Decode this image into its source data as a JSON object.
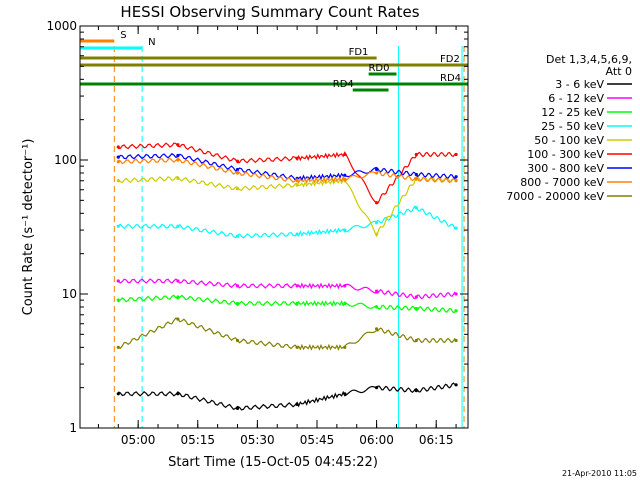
{
  "chart_data": {
    "type": "line",
    "title": "HESSI Observing Summary Count Rates",
    "xlabel": "Start Time (15-Oct-05 04:45:22)",
    "ylabel": "Count Rate (s⁻¹ detector⁻¹)",
    "x_units": "UT time",
    "xlim": [
      "04:45:22",
      "06:23:00"
    ],
    "x_ticks": [
      "05:00",
      "05:15",
      "05:30",
      "05:45",
      "06:00",
      "06:15"
    ],
    "y_scale": "log",
    "ylim": [
      1,
      1000
    ],
    "y_ticks": [
      "1",
      "10",
      "100",
      "1000"
    ],
    "legend_header": [
      "Det 1,3,4,5,6,9,",
      "Att 0"
    ],
    "legend_position": "right",
    "timestamp": "21-Apr-2010 11:05",
    "series": [
      {
        "name": "3 - 6 keV",
        "color": "#000000",
        "x": [
          "04:55",
          "05:10",
          "05:25",
          "05:40",
          "05:52",
          "06:00",
          "06:10",
          "06:20"
        ],
        "values": [
          1.8,
          1.8,
          1.4,
          1.5,
          1.8,
          2.0,
          1.9,
          2.1
        ]
      },
      {
        "name": "6 - 12 keV",
        "color": "#ff00ff",
        "x": [
          "04:55",
          "05:10",
          "05:25",
          "05:40",
          "05:52",
          "06:00",
          "06:10",
          "06:20"
        ],
        "values": [
          12.5,
          12.5,
          11.5,
          11.5,
          11.5,
          10.5,
          9.5,
          10.0
        ]
      },
      {
        "name": "12 - 25 keV",
        "color": "#00ff00",
        "x": [
          "04:55",
          "05:10",
          "05:25",
          "05:40",
          "05:52",
          "06:00",
          "06:10",
          "06:20"
        ],
        "values": [
          9.0,
          9.5,
          8.5,
          8.5,
          8.5,
          8.0,
          7.8,
          7.5
        ]
      },
      {
        "name": "25 - 50 keV",
        "color": "#00ffff",
        "x": [
          "04:55",
          "05:10",
          "05:25",
          "05:40",
          "05:52",
          "06:00",
          "06:10",
          "06:20"
        ],
        "values": [
          32,
          32,
          27,
          28,
          30,
          34,
          44,
          31
        ]
      },
      {
        "name": "50 - 100 keV",
        "color": "#cccc00",
        "x": [
          "04:55",
          "05:10",
          "05:25",
          "05:40",
          "05:52",
          "06:00",
          "06:10",
          "06:20"
        ],
        "values": [
          70,
          73,
          61,
          65,
          70,
          28,
          73,
          71
        ]
      },
      {
        "name": "100 - 300 keV",
        "color": "#ff0000",
        "x": [
          "04:55",
          "05:10",
          "05:25",
          "05:40",
          "05:52",
          "06:00",
          "06:10",
          "06:20"
        ],
        "values": [
          125,
          130,
          98,
          103,
          110,
          48,
          110,
          110
        ]
      },
      {
        "name": "300 - 800 keV",
        "color": "#0000ff",
        "x": [
          "04:55",
          "05:10",
          "05:25",
          "05:40",
          "05:52",
          "06:00",
          "06:10",
          "06:20"
        ],
        "values": [
          105,
          108,
          85,
          73,
          77,
          85,
          78,
          75
        ]
      },
      {
        "name": "800 - 7000 keV",
        "color": "#ff8000",
        "x": [
          "04:55",
          "05:10",
          "05:25",
          "05:40",
          "05:52",
          "06:00",
          "06:10",
          "06:20"
        ],
        "values": [
          97,
          100,
          80,
          70,
          72,
          80,
          72,
          70
        ]
      },
      {
        "name": "7000 - 20000 keV",
        "color": "#808000",
        "x": [
          "04:55",
          "05:10",
          "05:25",
          "05:40",
          "05:52",
          "06:00",
          "06:10",
          "06:20"
        ],
        "values": [
          4.0,
          6.5,
          4.5,
          4.0,
          4.0,
          5.5,
          4.5,
          4.5
        ]
      }
    ],
    "flag_bars": [
      {
        "label": "S",
        "color": "#ff8000",
        "start": "04:45:22",
        "end": "04:54:00",
        "level": 1
      },
      {
        "label": "N",
        "color": "#00ffff",
        "start": "04:45:22",
        "end": "05:01:00",
        "level": 2
      },
      {
        "label": "FD1",
        "color": "#808000",
        "start": "04:45:22",
        "end": "06:00:00",
        "level": 3
      },
      {
        "label": "FD2",
        "color": "#808000",
        "start": "04:45:22",
        "end": "06:23:00",
        "level": 4
      },
      {
        "label": "RD0",
        "color": "#008000",
        "start": "05:58:00",
        "end": "06:05:00",
        "level": 5
      },
      {
        "label": "RD4",
        "color": "#008000",
        "start": "04:45:22",
        "end": "06:23:00",
        "level": 6
      },
      {
        "label": "RD4",
        "color": "#008000",
        "start": "05:54:00",
        "end": "06:03:00",
        "level": 7
      }
    ],
    "vertical_markers": [
      {
        "time": "04:54:00",
        "color": "#ff8000",
        "style": "dashed"
      },
      {
        "time": "05:01:00",
        "color": "#00ffff",
        "style": "dashed"
      },
      {
        "time": "04:45:22",
        "color": "#00ffff",
        "style": "solid"
      },
      {
        "time": "06:05:30",
        "color": "#00ffff",
        "style": "solid"
      },
      {
        "time": "06:21:30",
        "color": "#00ffff",
        "style": "solid"
      },
      {
        "time": "06:22:00",
        "color": "#ff8000",
        "style": "dashed"
      }
    ]
  }
}
